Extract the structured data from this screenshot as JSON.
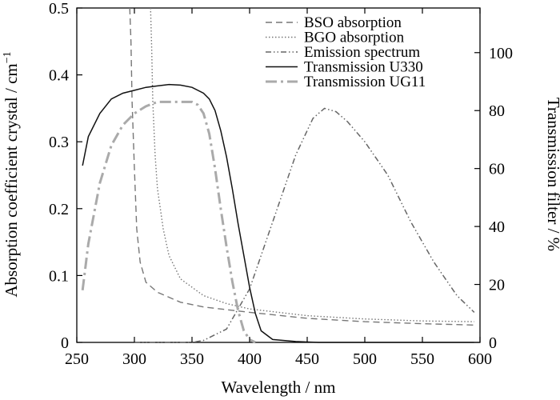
{
  "chart_data": {
    "type": "line",
    "xlabel": "Wavelength / nm",
    "ylabel_left": "Absorption coefficient crystal / cm",
    "ylabel_left_sup": "−1",
    "ylabel_right": "Transmission filter / %",
    "xlim": [
      250,
      600
    ],
    "ylim_left": [
      0,
      0.5
    ],
    "ylim_right": [
      0,
      115.4
    ],
    "x_ticks": [
      250,
      300,
      350,
      400,
      450,
      500,
      550,
      600
    ],
    "y_left_ticks": [
      0,
      0.1,
      0.2,
      0.3,
      0.4,
      0.5
    ],
    "y_left_tick_labels": [
      "0",
      "0.1",
      "0.2",
      "0.3",
      "0.4",
      "0.5"
    ],
    "y_right_ticks": [
      0,
      20,
      40,
      60,
      80,
      100
    ],
    "grid": false,
    "legend_position": "top-right",
    "series": [
      {
        "name": "BSO absorption",
        "axis": "left",
        "color": "#777777",
        "dash": "8,5",
        "width": 1.4,
        "x": [
          296,
          297,
          298,
          300,
          302,
          305,
          310,
          320,
          340,
          360,
          400,
          450,
          500,
          550,
          595
        ],
        "y": [
          0.5,
          0.45,
          0.36,
          0.26,
          0.17,
          0.12,
          0.09,
          0.075,
          0.06,
          0.053,
          0.045,
          0.036,
          0.031,
          0.028,
          0.026
        ]
      },
      {
        "name": "BGO absorption",
        "axis": "left",
        "color": "#777777",
        "dash": "1.5,2.5",
        "width": 1.4,
        "x": [
          314,
          315,
          316,
          318,
          320,
          325,
          330,
          340,
          360,
          380,
          400,
          450,
          500,
          550,
          595
        ],
        "y": [
          0.5,
          0.44,
          0.36,
          0.28,
          0.23,
          0.17,
          0.13,
          0.095,
          0.07,
          0.058,
          0.05,
          0.04,
          0.035,
          0.032,
          0.031
        ]
      },
      {
        "name": "Emission spectrum",
        "axis": "left",
        "color": "#666666",
        "dash": "7,3,1.5,3,1.5,3",
        "width": 1.5,
        "x": [
          300,
          330,
          350,
          360,
          380,
          400,
          420,
          440,
          455,
          465,
          475,
          485,
          500,
          520,
          540,
          560,
          580,
          595
        ],
        "y": [
          0.0,
          0.0,
          0.0,
          0.003,
          0.02,
          0.08,
          0.18,
          0.28,
          0.335,
          0.35,
          0.345,
          0.33,
          0.3,
          0.25,
          0.18,
          0.12,
          0.07,
          0.045
        ]
      },
      {
        "name": "Transmission U330",
        "axis": "right",
        "color": "#111111",
        "dash": "",
        "width": 1.5,
        "x": [
          255,
          260,
          270,
          280,
          290,
          300,
          310,
          320,
          330,
          340,
          350,
          360,
          365,
          370,
          375,
          380,
          385,
          390,
          395,
          400,
          405,
          410,
          420,
          440,
          460,
          500,
          550,
          595
        ],
        "y": [
          61,
          71,
          79,
          84,
          86,
          87,
          88,
          88.5,
          89,
          88.8,
          88,
          86,
          84,
          80,
          73,
          64,
          53,
          41,
          30,
          19,
          10,
          4,
          1,
          0.3,
          0,
          0,
          0,
          0
        ]
      },
      {
        "name": "Transmission UG11",
        "axis": "right",
        "color": "#aaaaaa",
        "dash": "14,5,3,5",
        "width": 3,
        "x": [
          255,
          260,
          270,
          280,
          290,
          300,
          310,
          320,
          330,
          340,
          350,
          355,
          360,
          365,
          370,
          375,
          380,
          385,
          390,
          395,
          400,
          405
        ],
        "y": [
          18,
          34,
          55,
          68,
          75,
          79,
          81.5,
          83,
          83,
          83,
          83,
          82,
          79,
          72,
          60,
          46,
          33,
          21,
          11,
          4,
          1,
          0
        ]
      }
    ]
  }
}
